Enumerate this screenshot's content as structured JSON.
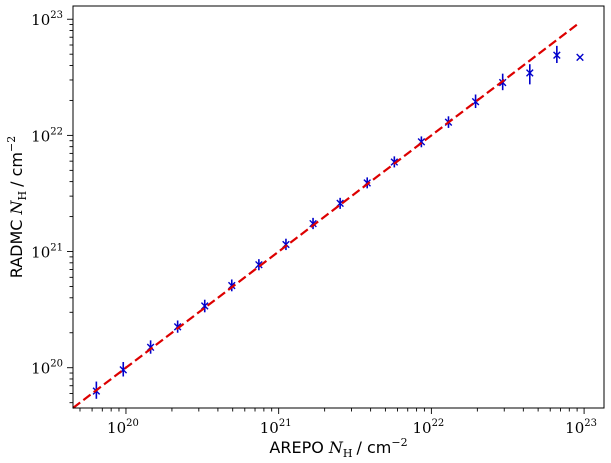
{
  "chart_data": {
    "type": "scatter",
    "title": "",
    "xlabel": {
      "prefix": "AREPO",
      "symbol": "N",
      "subscript": "H",
      "unit": "cm",
      "unit_exp": "−2"
    },
    "ylabel": {
      "prefix": "RADMC",
      "symbol": "N",
      "subscript": "H",
      "unit": "cm",
      "unit_exp": "−2"
    },
    "xscale": "log",
    "yscale": "log",
    "xlim": [
      4.5e+19,
      1.35e+23
    ],
    "ylim": [
      4.5e+19,
      1.3e+23
    ],
    "grid": false,
    "legend": "none",
    "x_ticks": [
      {
        "exp": 20,
        "base": "10",
        "sup": "20"
      },
      {
        "exp": 21,
        "base": "10",
        "sup": "21"
      },
      {
        "exp": 22,
        "base": "10",
        "sup": "22"
      },
      {
        "exp": 23,
        "base": "10",
        "sup": "23"
      }
    ],
    "y_ticks": [
      {
        "exp": 20,
        "base": "10",
        "sup": "20"
      },
      {
        "exp": 21,
        "base": "10",
        "sup": "21"
      },
      {
        "exp": 22,
        "base": "10",
        "sup": "22"
      },
      {
        "exp": 23,
        "base": "10",
        "sup": "23"
      }
    ],
    "series": [
      {
        "kind": "points_with_errorbars",
        "color": "#0000cc",
        "marker": "x",
        "points": [
          {
            "x": 6.4e+19,
            "y": 6.3e+19,
            "ylo": 5.4e+19,
            "yhi": 7.6e+19
          },
          {
            "x": 9.6e+19,
            "y": 9.6e+19,
            "ylo": 8.4e+19,
            "yhi": 1.12e+20
          },
          {
            "x": 1.45e+20,
            "y": 1.5e+20,
            "ylo": 1.32e+20,
            "yhi": 1.72e+20
          },
          {
            "x": 2.18e+20,
            "y": 2.25e+20,
            "ylo": 2e+20,
            "yhi": 2.55e+20
          },
          {
            "x": 3.28e+20,
            "y": 3.4e+20,
            "ylo": 3e+20,
            "yhi": 3.85e+20
          },
          {
            "x": 4.93e+20,
            "y": 5.1e+20,
            "ylo": 4.55e+20,
            "yhi": 5.75e+20
          },
          {
            "x": 7.42e+20,
            "y": 7.7e+20,
            "ylo": 6.9e+20,
            "yhi": 8.6e+20
          },
          {
            "x": 1.116e+21,
            "y": 1.15e+21,
            "ylo": 1.03e+21,
            "yhi": 1.29e+21
          },
          {
            "x": 1.679e+21,
            "y": 1.74e+21,
            "ylo": 1.56e+21,
            "yhi": 1.95e+21
          },
          {
            "x": 2.526e+21,
            "y": 2.6e+21,
            "ylo": 2.33e+21,
            "yhi": 2.9e+21
          },
          {
            "x": 3.8e+21,
            "y": 3.9e+21,
            "ylo": 3.5e+21,
            "yhi": 4.35e+21
          },
          {
            "x": 5.72e+21,
            "y": 5.9e+21,
            "ylo": 5.3e+21,
            "yhi": 6.6e+21
          },
          {
            "x": 8.6e+21,
            "y": 8.8e+21,
            "ylo": 7.9e+21,
            "yhi": 9.8e+21
          },
          {
            "x": 1.294e+22,
            "y": 1.3e+22,
            "ylo": 1.16e+22,
            "yhi": 1.46e+22
          },
          {
            "x": 1.947e+22,
            "y": 1.95e+22,
            "ylo": 1.72e+22,
            "yhi": 2.25e+22
          },
          {
            "x": 2.93e+22,
            "y": 2.85e+22,
            "ylo": 2.45e+22,
            "yhi": 3.4e+22
          },
          {
            "x": 4.41e+22,
            "y": 3.45e+22,
            "ylo": 2.75e+22,
            "yhi": 4.1e+22
          },
          {
            "x": 6.63e+22,
            "y": 4.9e+22,
            "ylo": 4.2e+22,
            "yhi": 5.9e+22
          },
          {
            "x": 9.4e+22,
            "y": 4.7e+22,
            "ylo": 4.7e+22,
            "yhi": 4.7e+22
          }
        ]
      },
      {
        "kind": "line",
        "style": "dashed",
        "color": "#dd0000",
        "x": [
          4.5e+19,
          9.4e+22
        ],
        "y": [
          4.5e+19,
          9.4e+22
        ]
      }
    ]
  }
}
